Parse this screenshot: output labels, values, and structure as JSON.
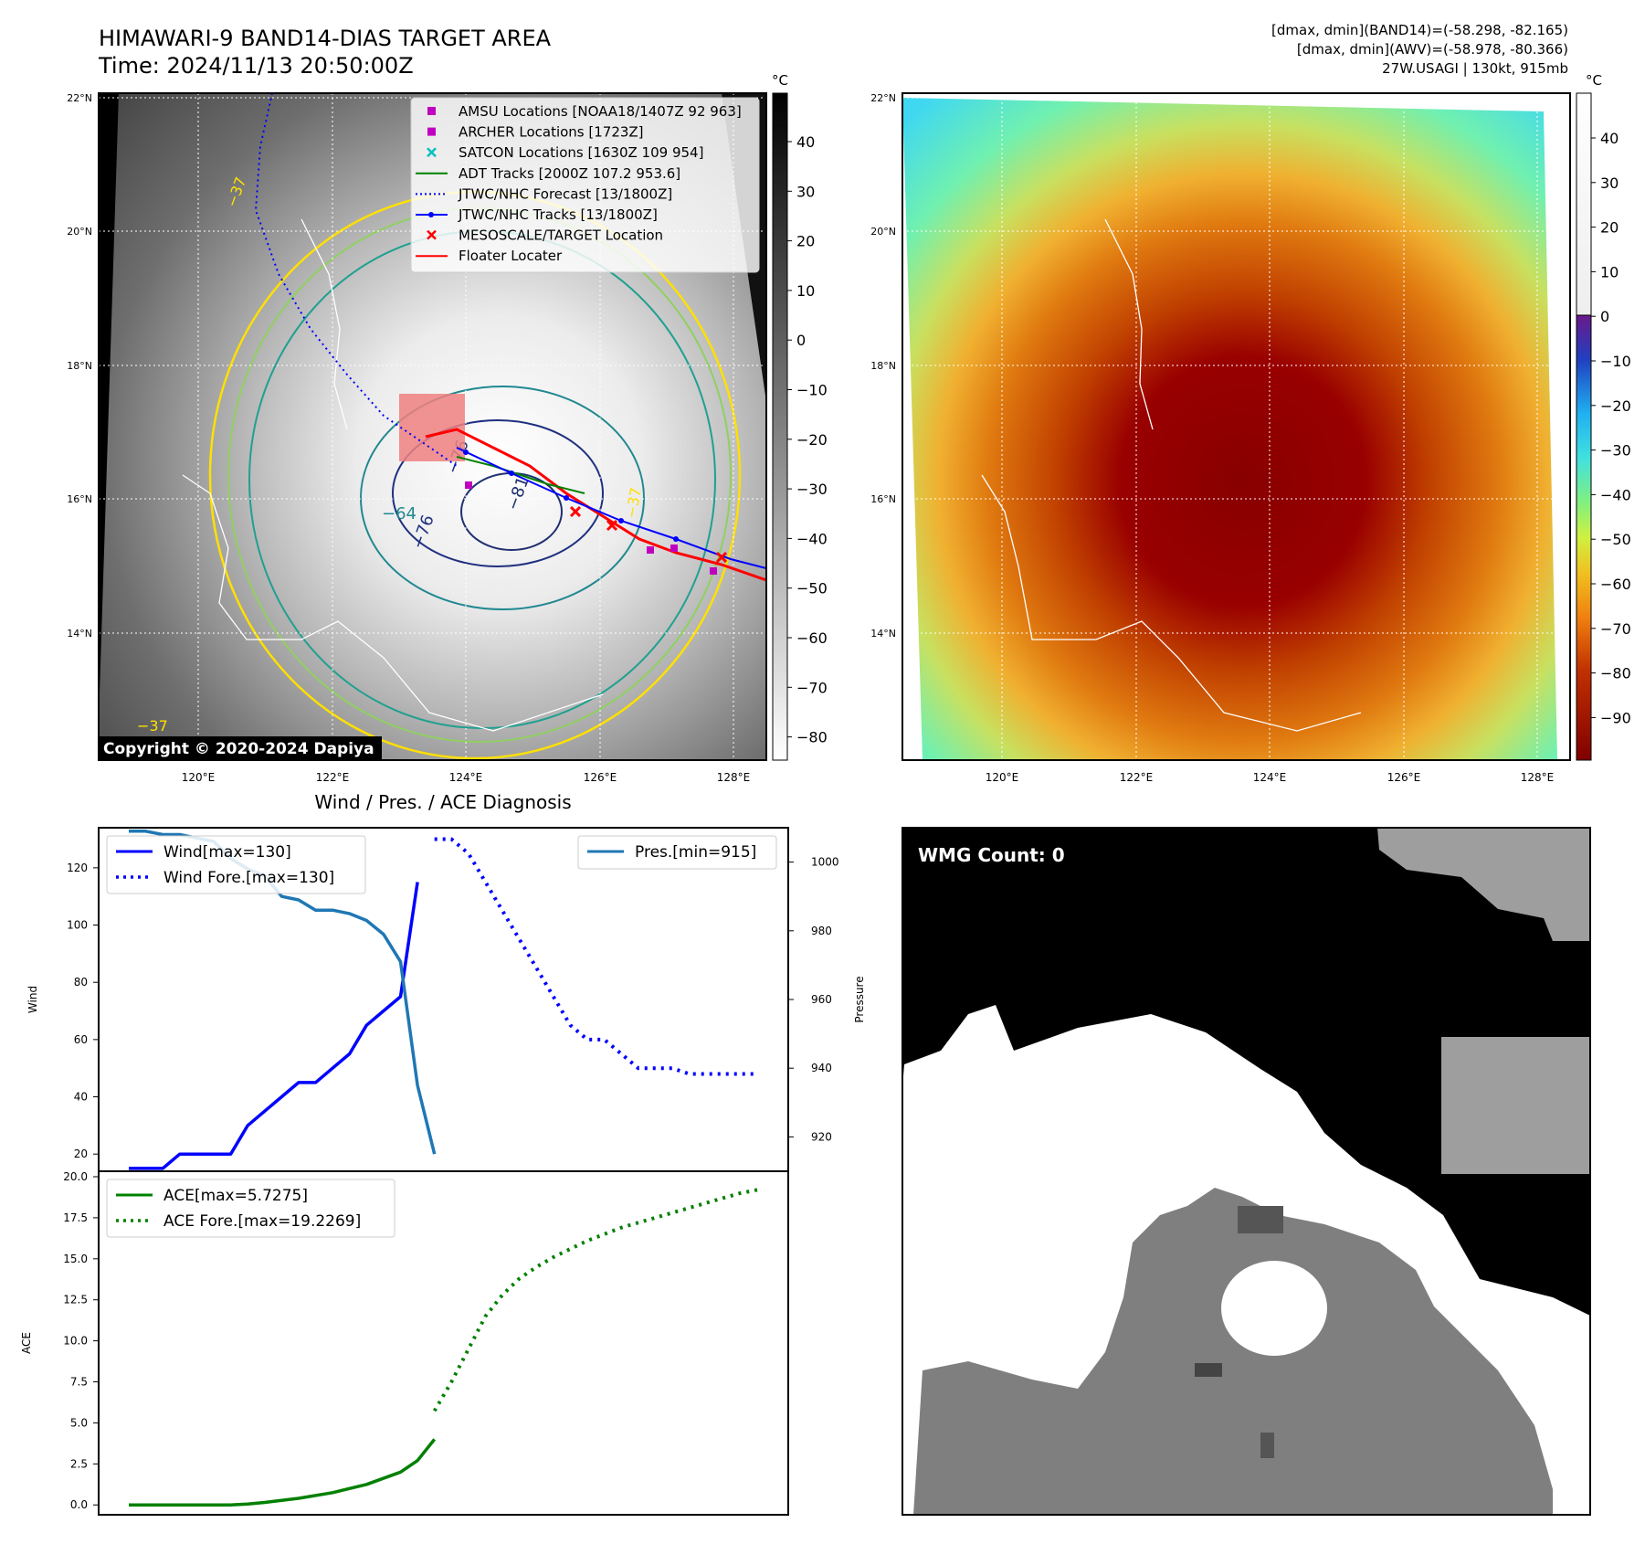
{
  "header": {
    "title_line1": "HIMAWARI-9 BAND14-DIAS TARGET AREA",
    "title_line2": "Time: 2024/11/13 20:50:00Z",
    "stats_line1": "[dmax, dmin](BAND14)=(-58.298, -82.165)",
    "stats_line2": "[dmax, dmin](AWV)=(-58.978, -80.366)",
    "stats_line3": "27W.USAGI | 130kt, 915mb"
  },
  "map_axes": {
    "lon_labels": [
      "120°E",
      "122°E",
      "124°E",
      "126°E",
      "128°E"
    ],
    "lat_labels": [
      "22°N",
      "20°N",
      "18°N",
      "16°N",
      "14°N"
    ]
  },
  "left_map": {
    "colorbar_unit": "°C",
    "colorbar_ticks": [
      "40",
      "30",
      "20",
      "10",
      "0",
      "−10",
      "−20",
      "−30",
      "−40",
      "−50",
      "−60",
      "−70",
      "−80"
    ],
    "copyright": "Copyright © 2020-2024 Dapiya",
    "contour_labels": [
      "−37",
      "−76",
      "−64",
      "−76",
      "−81",
      "−37",
      "−37"
    ],
    "legend": [
      {
        "label": "AMSU Locations [NOAA18/1407Z 92 963]",
        "color": "#c000c0",
        "marker": "square"
      },
      {
        "label": "ARCHER Locations [1723Z]",
        "color": "#c000c0",
        "marker": "square"
      },
      {
        "label": "SATCON Locations [1630Z 109 954]",
        "color": "#00c0c0",
        "marker": "x"
      },
      {
        "label": "ADT Tracks [2000Z 107.2 953.6]",
        "color": "#008000",
        "marker": "line"
      },
      {
        "label": "JTWC/NHC Forecast [13/1800Z]",
        "color": "#0000ff",
        "marker": "dotted"
      },
      {
        "label": "JTWC/NHC Tracks [13/1800Z]",
        "color": "#0000ff",
        "marker": "line-dot"
      },
      {
        "label": "MESOSCALE/TARGET Location",
        "color": "#ff0000",
        "marker": "x"
      },
      {
        "label": "Floater Locater",
        "color": "#ff0000",
        "marker": "line"
      }
    ]
  },
  "right_map": {
    "colorbar_unit": "°C",
    "colorbar_ticks": [
      "40",
      "30",
      "20",
      "10",
      "0",
      "−10",
      "−20",
      "−30",
      "−40",
      "−50",
      "−60",
      "−70",
      "−80",
      "−90"
    ]
  },
  "wmg_panel": {
    "label": "WMG Count: 0"
  },
  "chart_data": [
    {
      "type": "line",
      "title": "Wind / Pres. / ACE Diagnosis",
      "ylabel": "Wind",
      "ylabel_right": "Pressure",
      "ylim": [
        14,
        134
      ],
      "ylim_right": [
        910,
        1010
      ],
      "yticks": [
        20,
        40,
        60,
        80,
        100,
        120
      ],
      "yticks_right": [
        920,
        940,
        960,
        980,
        1000
      ],
      "series": [
        {
          "name": "Wind[max=130]",
          "style": "solid",
          "color": "#0000ff",
          "x": [
            0,
            1,
            2,
            3,
            4,
            5,
            6,
            7,
            8,
            9,
            10,
            11,
            12,
            13,
            14,
            15,
            16,
            17
          ],
          "values": [
            15,
            15,
            15,
            20,
            20,
            20,
            20,
            30,
            35,
            40,
            45,
            45,
            50,
            55,
            65,
            70,
            75,
            115
          ]
        },
        {
          "name": "Wind Fore.[max=130]",
          "style": "dotted",
          "color": "#0000ff",
          "x": [
            18,
            19,
            20,
            21,
            22,
            23,
            24,
            25,
            26,
            27,
            28,
            29,
            30,
            31,
            32,
            33,
            34,
            35,
            36,
            37
          ],
          "values": [
            130,
            130,
            125,
            115,
            105,
            95,
            85,
            75,
            65,
            60,
            60,
            55,
            50,
            50,
            50,
            48,
            48,
            48,
            48,
            48
          ]
        },
        {
          "name": "Pres.[min=915]",
          "style": "solid",
          "color": "#1f77b4",
          "axis": "right",
          "x": [
            0,
            1,
            2,
            3,
            4,
            5,
            6,
            7,
            8,
            9,
            10,
            11,
            12,
            13,
            14,
            15,
            16,
            17,
            18
          ],
          "values": [
            1009,
            1009,
            1008,
            1008,
            1007,
            1006,
            1001,
            998,
            996,
            990,
            989,
            986,
            986,
            985,
            983,
            979,
            971,
            935,
            915
          ]
        }
      ]
    },
    {
      "type": "line",
      "ylabel": "ACE",
      "ylim": [
        -0.6,
        20
      ],
      "yticks": [
        "0.0",
        "2.5",
        "5.0",
        "7.5",
        "10.0",
        "12.5",
        "15.0",
        "17.5",
        "20.0"
      ],
      "series": [
        {
          "name": "ACE[max=5.7275]",
          "style": "solid",
          "color": "#008000",
          "x": [
            0,
            2,
            4,
            6,
            7,
            8,
            10,
            12,
            14,
            16,
            17,
            18
          ],
          "values": [
            0,
            0,
            0,
            0,
            0.05,
            0.15,
            0.4,
            0.75,
            1.25,
            2.0,
            2.7,
            4.0
          ]
        },
        {
          "name": "ACE Fore.[max=19.2269]",
          "style": "dotted",
          "color": "#008000",
          "x": [
            18,
            19,
            20,
            21,
            22,
            23,
            24,
            25,
            26,
            27,
            28,
            29,
            30,
            31,
            32,
            33,
            34,
            35,
            36,
            37
          ],
          "values": [
            5.73,
            7.5,
            9.5,
            11.5,
            12.8,
            13.8,
            14.5,
            15.1,
            15.6,
            16.1,
            16.5,
            16.9,
            17.2,
            17.5,
            17.8,
            18.1,
            18.4,
            18.7,
            19.0,
            19.2
          ]
        }
      ]
    }
  ]
}
